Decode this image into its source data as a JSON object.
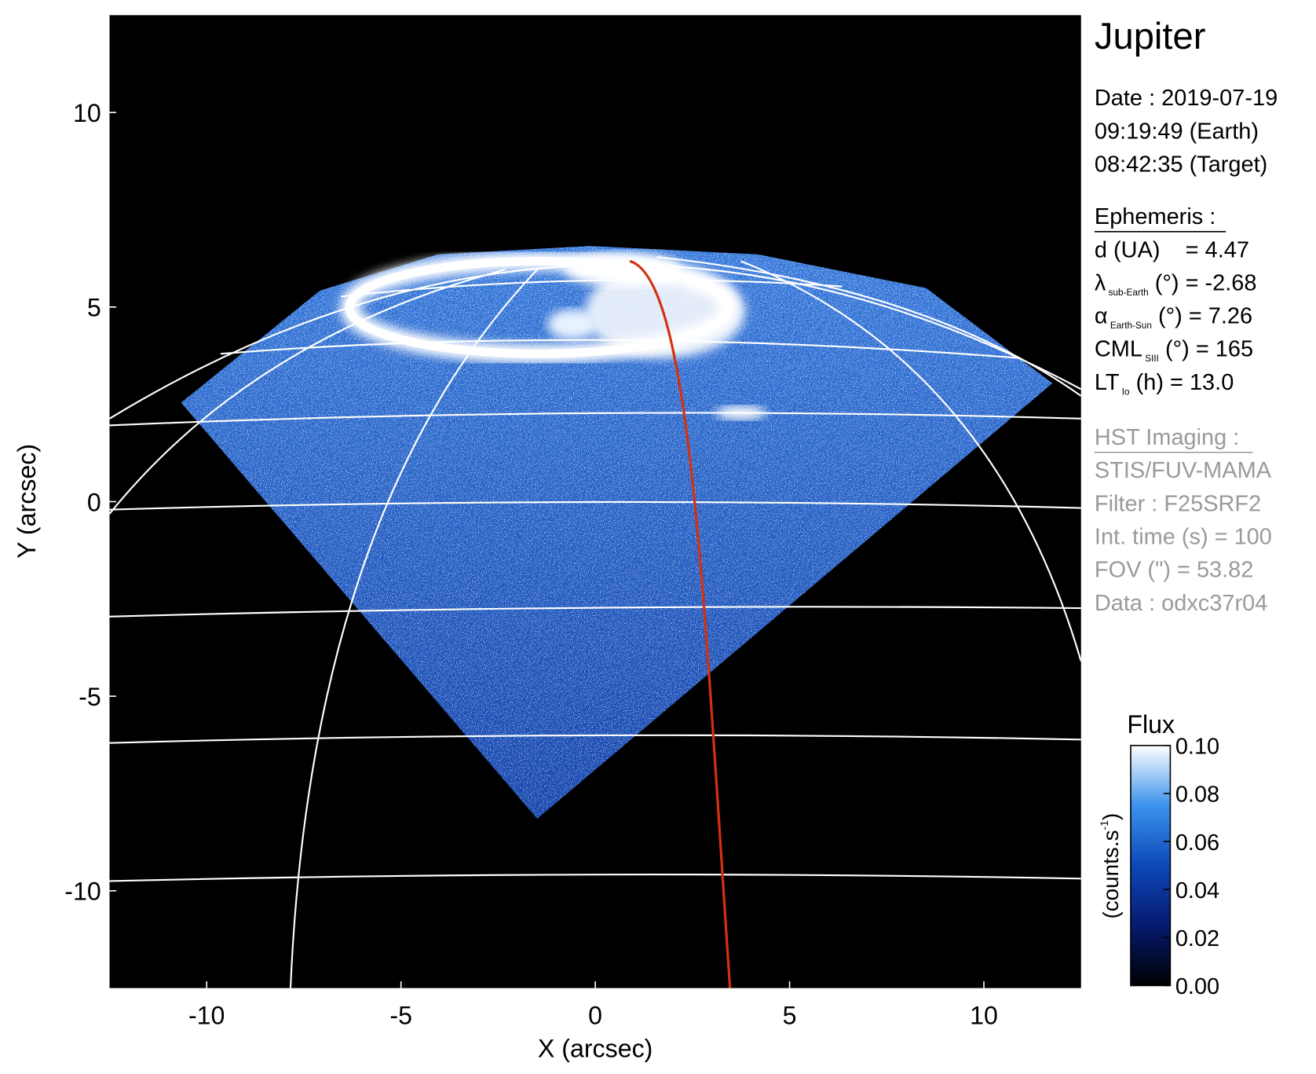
{
  "chart_data": {
    "type": "image",
    "title": "Jupiter",
    "xlabel": "X (arcsec)",
    "ylabel": "Y (arcsec)",
    "xlim": [
      -12.5,
      12.5
    ],
    "ylim": [
      -12.5,
      12.5
    ],
    "xticks": [
      -10,
      -5,
      0,
      5,
      10
    ],
    "yticks": [
      -10,
      -5,
      0,
      5,
      10
    ],
    "info": {
      "date_lines": [
        "Date : 2019-07-19",
        "09:19:49 (Earth)",
        "08:42:35 (Target)"
      ],
      "ephemeris": {
        "heading": "Ephemeris :",
        "color": "#000000",
        "lines": [
          {
            "pre": "d (UA)    = 4.47"
          },
          {
            "pre": "λ",
            "sub": "sub-Earth",
            "post": " (°) = -2.68"
          },
          {
            "pre": "α",
            "sub": "Earth-Sun",
            "post": " (°) = 7.26"
          },
          {
            "pre": "CML",
            "sub": "SIII",
            "post": " (°) = 165"
          },
          {
            "pre": "LT",
            "sub": "Io",
            "post": " (h) = 13.0"
          }
        ]
      },
      "imaging": {
        "heading": "HST Imaging :",
        "color": "#9a9a9a",
        "lines": [
          {
            "pre": "STIS/FUV-MAMA"
          },
          {
            "pre": "Filter : F25SRF2"
          },
          {
            "pre": "Int. time (s) = 100"
          },
          {
            "pre": "FOV (\") = 53.82"
          },
          {
            "pre": "Data : odxc37r04"
          }
        ]
      }
    },
    "colorbar": {
      "title": "Flux",
      "label": "(counts.s",
      "label_sup": "-1",
      "label_end": ")",
      "lim": [
        0,
        0.1
      ],
      "ticks": [
        {
          "value": 0,
          "label": "0.00"
        },
        {
          "value": 0.02,
          "label": "0.02"
        },
        {
          "value": 0.04,
          "label": "0.04"
        },
        {
          "value": 0.06,
          "label": "0.06"
        },
        {
          "value": 0.08,
          "label": "0.08"
        },
        {
          "value": 0.1,
          "label": "0.10"
        }
      ]
    }
  }
}
